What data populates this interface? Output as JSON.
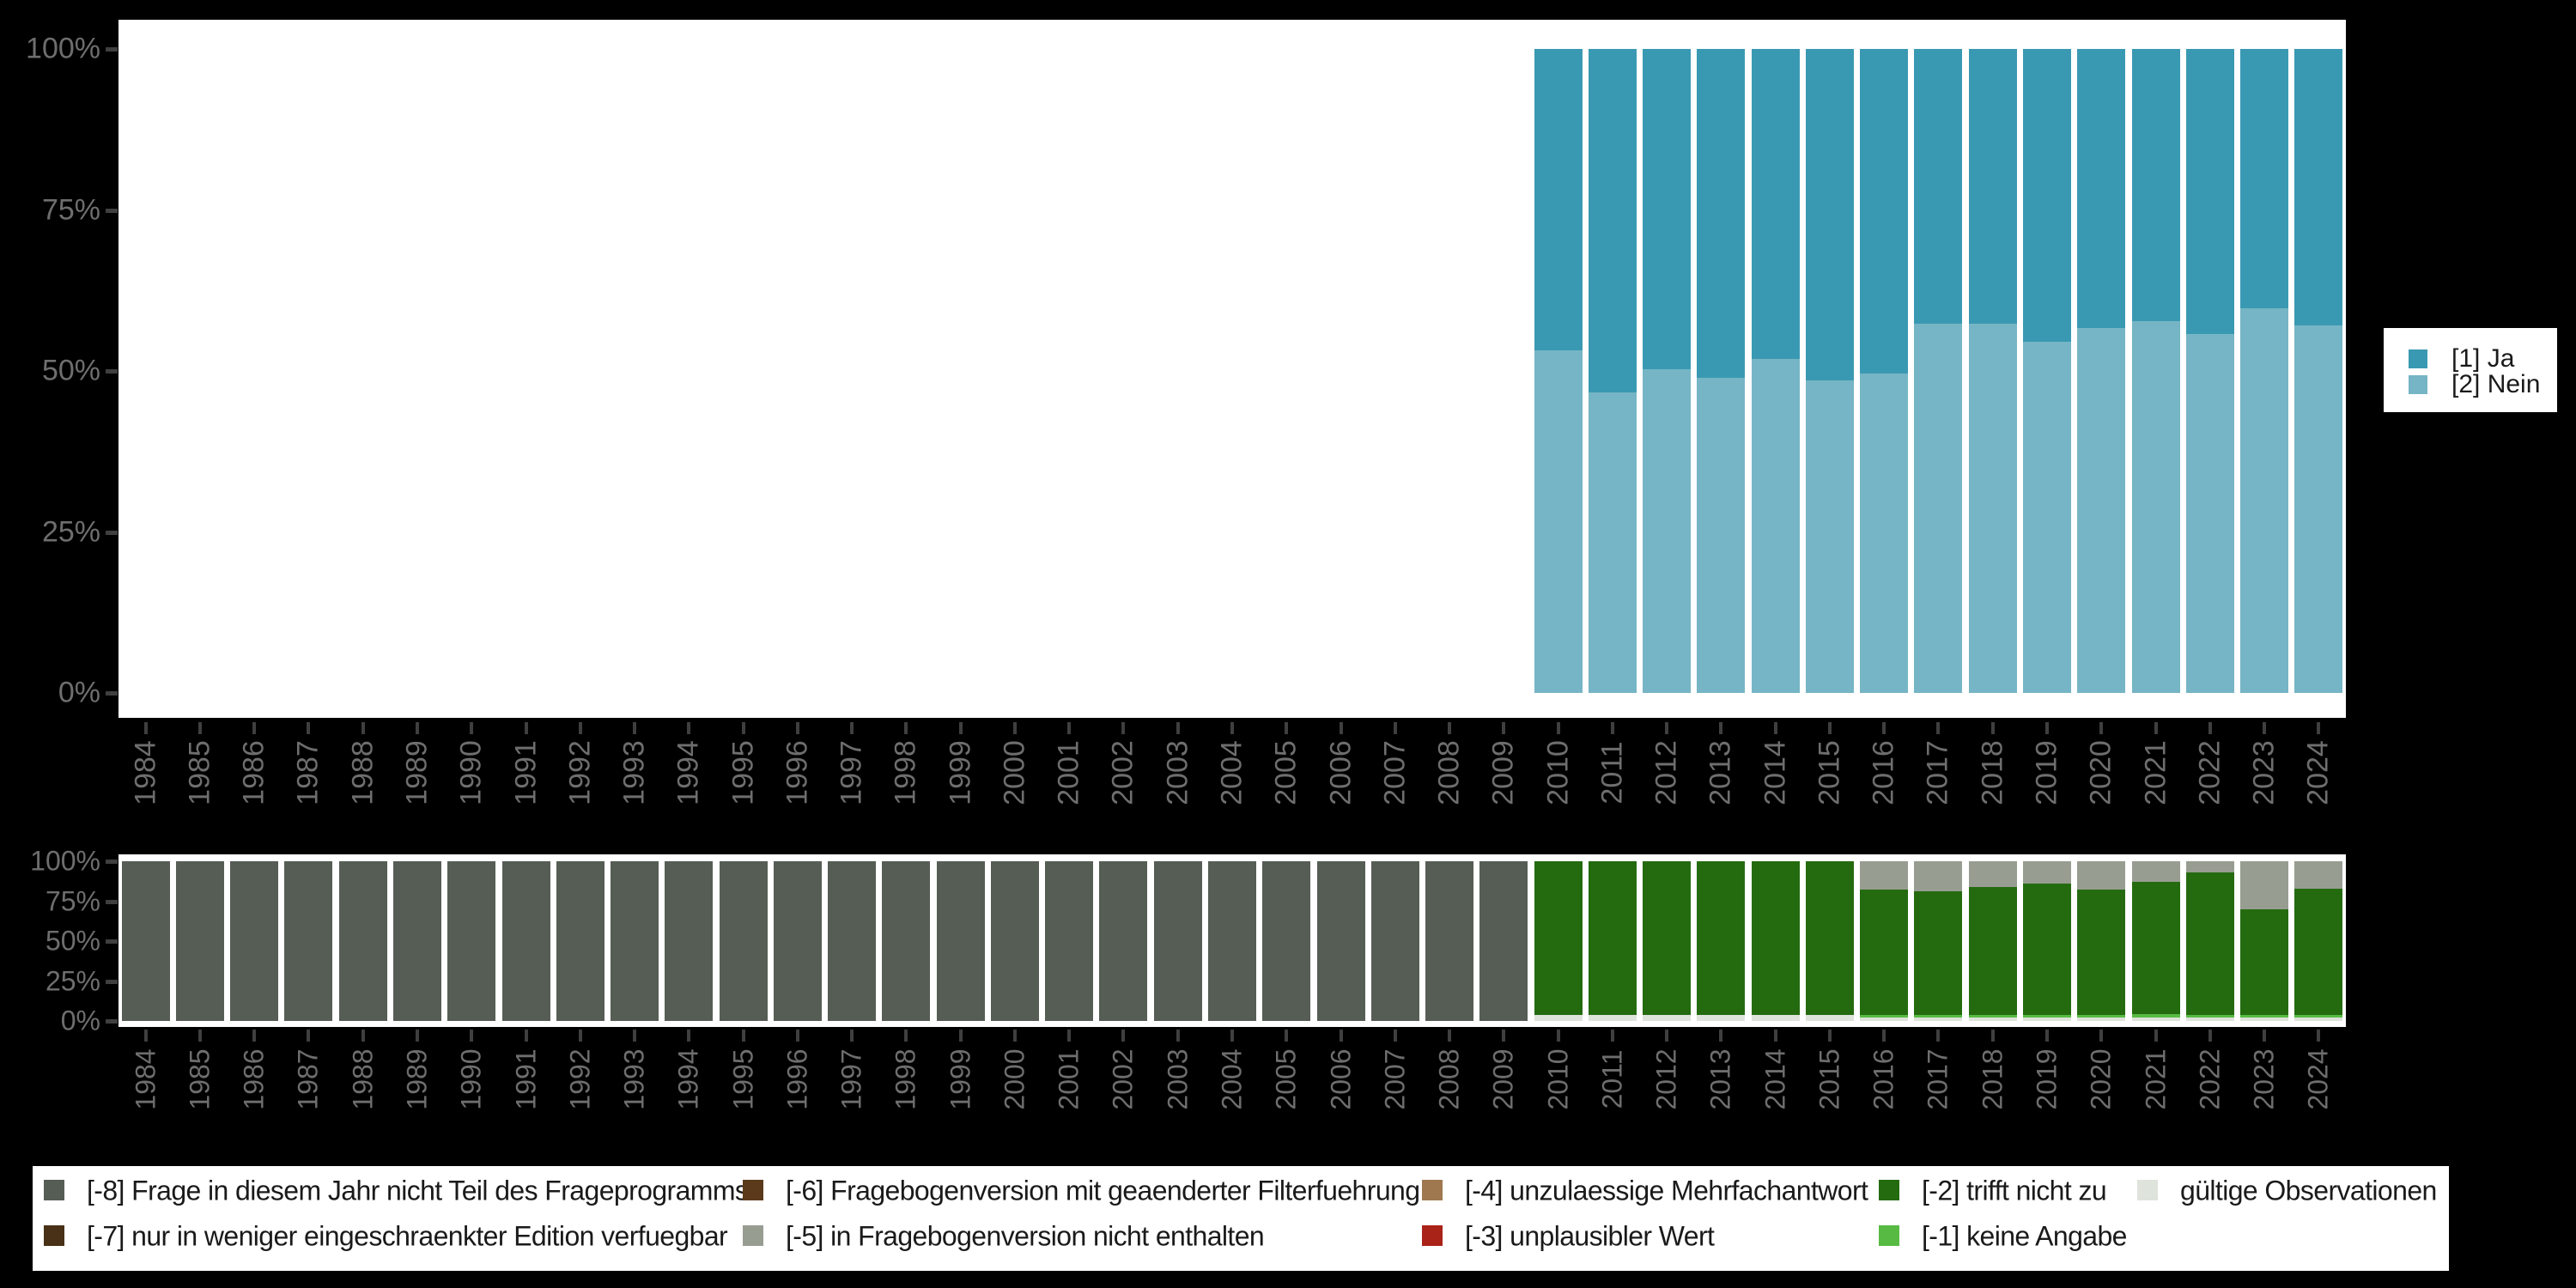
{
  "axis": {
    "years": [
      1984,
      1985,
      1986,
      1987,
      1988,
      1989,
      1990,
      1991,
      1992,
      1993,
      1994,
      1995,
      1996,
      1997,
      1998,
      1999,
      2000,
      2001,
      2002,
      2003,
      2004,
      2005,
      2006,
      2007,
      2008,
      2009,
      2010,
      2011,
      2012,
      2013,
      2014,
      2015,
      2016,
      2017,
      2018,
      2019,
      2020,
      2021,
      2022,
      2023,
      2024
    ],
    "y_tick_labels": [
      "100%",
      "75%",
      "50%",
      "25%",
      "0%"
    ]
  },
  "chart_data": [
    {
      "id": "answer-distribution",
      "type": "bar",
      "stacked": true,
      "unit": "percent",
      "title": "",
      "xlabel": "",
      "ylabel": "",
      "ylim": [
        0,
        100
      ],
      "y_ticks": [
        100,
        75,
        50,
        25,
        0
      ],
      "grid": false,
      "legend_position": "right",
      "categories_note": "values are percent per year; null = no data shown (1984-2009)",
      "x": [
        1984,
        1985,
        1986,
        1987,
        1988,
        1989,
        1990,
        1991,
        1992,
        1993,
        1994,
        1995,
        1996,
        1997,
        1998,
        1999,
        2000,
        2001,
        2002,
        2003,
        2004,
        2005,
        2006,
        2007,
        2008,
        2009,
        2010,
        2011,
        2012,
        2013,
        2014,
        2015,
        2016,
        2017,
        2018,
        2019,
        2020,
        2021,
        2022,
        2023,
        2024
      ],
      "series": [
        {
          "name": "[1] Ja",
          "color": "#3A99B2",
          "values": [
            null,
            null,
            null,
            null,
            null,
            null,
            null,
            null,
            null,
            null,
            null,
            null,
            null,
            null,
            null,
            null,
            null,
            null,
            null,
            null,
            null,
            null,
            null,
            null,
            null,
            null,
            46.8,
            53.3,
            49.7,
            51.1,
            48.1,
            51.5,
            50.4,
            42.7,
            42.6,
            45.5,
            43.3,
            42.3,
            44.2,
            40.3,
            42.9
          ]
        },
        {
          "name": "[2] Nein",
          "color": "#76B5C5",
          "values": [
            null,
            null,
            null,
            null,
            null,
            null,
            null,
            null,
            null,
            null,
            null,
            null,
            null,
            null,
            null,
            null,
            null,
            null,
            null,
            null,
            null,
            null,
            null,
            null,
            null,
            null,
            53.2,
            46.7,
            50.3,
            48.9,
            51.9,
            48.5,
            49.6,
            57.3,
            57.4,
            54.5,
            56.7,
            57.7,
            55.8,
            59.7,
            57.1
          ]
        }
      ]
    },
    {
      "id": "missings",
      "type": "bar",
      "stacked": true,
      "unit": "percent",
      "title": "",
      "xlabel": "",
      "ylabel": "",
      "ylim": [
        0,
        100
      ],
      "y_ticks": [
        100,
        75,
        50,
        25,
        0
      ],
      "grid": false,
      "legend_position": "bottom",
      "x": [
        1984,
        1985,
        1986,
        1987,
        1988,
        1989,
        1990,
        1991,
        1992,
        1993,
        1994,
        1995,
        1996,
        1997,
        1998,
        1999,
        2000,
        2001,
        2002,
        2003,
        2004,
        2005,
        2006,
        2007,
        2008,
        2009,
        2010,
        2011,
        2012,
        2013,
        2014,
        2015,
        2016,
        2017,
        2018,
        2019,
        2020,
        2021,
        2022,
        2023,
        2024
      ],
      "series": [
        {
          "name": "[-8] Frage in diesem Jahr nicht Teil des Frageprogramms",
          "color": "#565D55",
          "values": [
            100,
            100,
            100,
            100,
            100,
            100,
            100,
            100,
            100,
            100,
            100,
            100,
            100,
            100,
            100,
            100,
            100,
            100,
            100,
            100,
            100,
            100,
            100,
            100,
            100,
            100,
            null,
            null,
            null,
            null,
            null,
            null,
            null,
            null,
            null,
            null,
            null,
            null,
            null,
            null,
            null
          ]
        },
        {
          "name": "[-5] in Fragebogenversion nicht enthalten",
          "color": "#989D92",
          "values": [
            null,
            null,
            null,
            null,
            null,
            null,
            null,
            null,
            null,
            null,
            null,
            null,
            null,
            null,
            null,
            null,
            null,
            null,
            null,
            null,
            null,
            null,
            null,
            null,
            null,
            null,
            null,
            null,
            null,
            null,
            null,
            null,
            18,
            19,
            16,
            14,
            18,
            13,
            7,
            30,
            17
          ]
        },
        {
          "name": "[-2] trifft nicht zu",
          "color": "#246B10",
          "values": [
            null,
            null,
            null,
            null,
            null,
            null,
            null,
            null,
            null,
            null,
            null,
            null,
            null,
            null,
            null,
            null,
            null,
            null,
            null,
            null,
            null,
            null,
            null,
            null,
            null,
            null,
            96.2,
            96.2,
            96.2,
            96.2,
            96.2,
            96.2,
            78.2,
            77.2,
            80.2,
            82.2,
            78.2,
            82.7,
            89.2,
            66.2,
            79.2
          ]
        },
        {
          "name": "[-1] keine Angabe",
          "color": "#57BB43",
          "values": [
            null,
            null,
            null,
            null,
            null,
            null,
            null,
            null,
            null,
            null,
            null,
            null,
            null,
            null,
            null,
            null,
            null,
            null,
            null,
            null,
            null,
            null,
            null,
            null,
            null,
            null,
            null,
            null,
            null,
            null,
            null,
            null,
            1.5,
            1.5,
            1.5,
            1.5,
            1.5,
            2.0,
            1.5,
            1.5,
            1.5
          ]
        },
        {
          "name": "gültige Observationen",
          "color": "#DEE3DB",
          "values": [
            null,
            null,
            null,
            null,
            null,
            null,
            null,
            null,
            null,
            null,
            null,
            null,
            null,
            null,
            null,
            null,
            null,
            null,
            null,
            null,
            null,
            null,
            null,
            null,
            null,
            null,
            3.8,
            3.8,
            3.8,
            3.8,
            3.8,
            3.8,
            2.3,
            2.3,
            2.3,
            2.3,
            2.3,
            2.3,
            2.3,
            2.3,
            2.3
          ]
        }
      ]
    }
  ],
  "top_legend": {
    "items": [
      {
        "label": "[1] Ja",
        "color": "#3A99B2"
      },
      {
        "label": "[2] Nein",
        "color": "#76B5C5"
      }
    ]
  },
  "missings_legend": {
    "columns": [
      [
        {
          "label": "[-8] Frage in diesem Jahr nicht Teil des Frageprogramms",
          "color": "#565D55"
        },
        {
          "label": "[-7] nur in weniger eingeschraenkter Edition verfuegbar",
          "color": "#483117"
        }
      ],
      [
        {
          "label": "[-6] Fragebogenversion mit geaenderter Filterfuehrung",
          "color": "#5A3A1A"
        },
        {
          "label": "[-5] in Fragebogenversion nicht enthalten",
          "color": "#989D92"
        }
      ],
      [
        {
          "label": "[-4] unzulaessige Mehrfachantwort",
          "color": "#A07850"
        },
        {
          "label": "[-3] unplausibler Wert",
          "color": "#AA2318"
        }
      ],
      [
        {
          "label": "[-2] trifft nicht zu",
          "color": "#246B10"
        },
        {
          "label": "[-1] keine Angabe",
          "color": "#57BB43"
        }
      ],
      [
        {
          "label": "gültige Observationen",
          "color": "#DEE3DB"
        }
      ]
    ]
  },
  "style_colors": {
    "background": "#000000",
    "panel": "#ffffff",
    "axis_text": "#6e6e6e",
    "tick_mark": "#3f3f3f",
    "legend_text": "#1a1a1a"
  }
}
